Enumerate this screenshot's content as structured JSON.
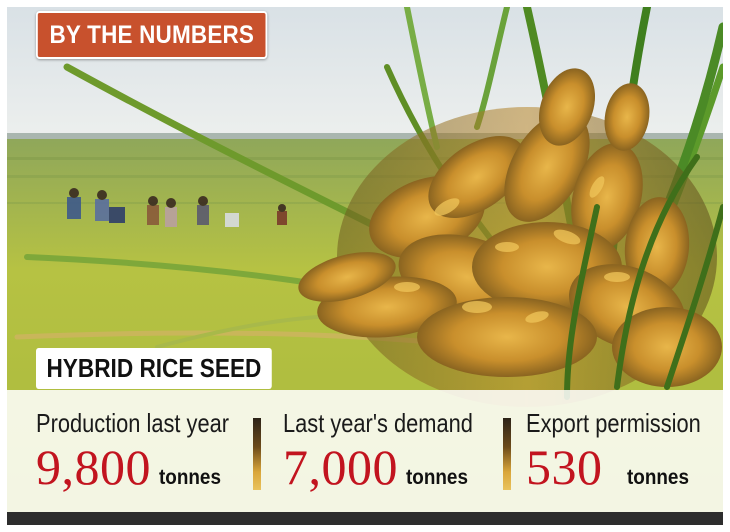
{
  "header": {
    "title": "BY THE NUMBERS"
  },
  "section": {
    "title": "HYBRID RICE SEED"
  },
  "stats": [
    {
      "label": "Production last year",
      "value": "9,800",
      "unit": "tonnes"
    },
    {
      "label": "Last year's demand",
      "value": "7,000",
      "unit": "tonnes"
    },
    {
      "label": "Export permission",
      "value": "530",
      "unit": "tonnes"
    }
  ],
  "colors": {
    "badge": "#c8512d",
    "value_text": "#c2141f",
    "footer_bar": "#2d2d2d"
  },
  "image": {
    "subject": "rice-field-photo"
  }
}
